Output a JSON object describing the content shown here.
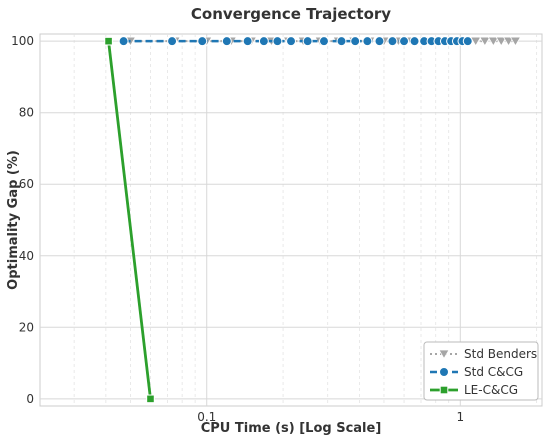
{
  "chart_data": {
    "type": "line",
    "title": "Convergence Trajectory",
    "xlabel": "CPU Time (s) [Log Scale]",
    "ylabel": "Optimality Gap (%)",
    "xscale": "log",
    "xlim": [
      0.022,
      2.1
    ],
    "ylim": [
      -2,
      102
    ],
    "grid": true,
    "legend_position": "bottom-right",
    "x_ticks": [
      {
        "value": 0.1,
        "label": "0.1"
      },
      {
        "value": 1,
        "label": "1"
      }
    ],
    "y_ticks": [
      {
        "value": 0,
        "label": "0"
      },
      {
        "value": 20,
        "label": "20"
      },
      {
        "value": 40,
        "label": "40"
      },
      {
        "value": 60,
        "label": "60"
      },
      {
        "value": 80,
        "label": "80"
      },
      {
        "value": 100,
        "label": "100"
      }
    ],
    "series": [
      {
        "name": "Std Benders",
        "color": "#a6a6a6",
        "marker": "triangle-down",
        "line_style": "dotted",
        "x": [
          0.05,
          0.075,
          0.1,
          0.125,
          0.15,
          0.18,
          0.21,
          0.24,
          0.28,
          0.33,
          0.38,
          0.44,
          0.5,
          0.57,
          0.64,
          0.72,
          0.8,
          0.88,
          0.96,
          1.05,
          1.15,
          1.25,
          1.35,
          1.45,
          1.55,
          1.65
        ],
        "y": [
          100,
          100,
          100,
          100,
          100,
          100,
          100,
          100,
          100,
          100,
          100,
          100,
          100,
          100,
          100,
          100,
          100,
          100,
          100,
          100,
          100,
          100,
          100,
          100,
          100,
          100
        ]
      },
      {
        "name": "Std C&CG",
        "color": "#1f77b4",
        "marker": "circle",
        "line_style": "dashed",
        "x": [
          0.047,
          0.073,
          0.096,
          0.12,
          0.145,
          0.168,
          0.19,
          0.215,
          0.25,
          0.29,
          0.34,
          0.385,
          0.43,
          0.48,
          0.54,
          0.6,
          0.66,
          0.72,
          0.77,
          0.82,
          0.87,
          0.92,
          0.97,
          1.02,
          1.07
        ],
        "y": [
          100,
          100,
          100,
          100,
          100,
          100,
          100,
          100,
          100,
          100,
          100,
          100,
          100,
          100,
          100,
          100,
          100,
          100,
          100,
          100,
          100,
          100,
          100,
          100,
          100
        ]
      },
      {
        "name": "LE-C&CG",
        "color": "#2ca02c",
        "marker": "square",
        "line_style": "solid",
        "x": [
          0.041,
          0.06
        ],
        "y": [
          100,
          0
        ]
      }
    ]
  }
}
